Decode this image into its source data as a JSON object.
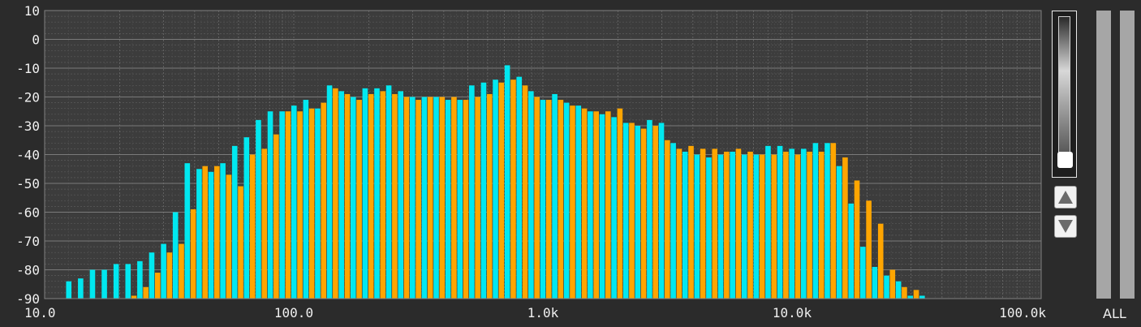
{
  "chart_data": {
    "type": "bar",
    "x_scale": "log",
    "xlim": [
      10,
      100000
    ],
    "ylim": [
      -90,
      10
    ],
    "grid": true,
    "y_ticks": [
      10,
      0,
      -10,
      -20,
      -30,
      -40,
      -50,
      -60,
      -70,
      -80,
      -90
    ],
    "y_tick_labels": [
      "10",
      "0",
      "-10",
      "-20",
      "-30",
      "-40",
      "-50",
      "-60",
      "-70",
      "-80",
      "-90"
    ],
    "x_ticks": [
      10,
      100,
      1000,
      10000,
      100000
    ],
    "x_tick_labels": [
      "10.0",
      "100.0",
      "1.0k",
      "10.0k",
      "100.0k"
    ],
    "band_start_freq": 12.5,
    "band_step_ratio": 1.0563,
    "series": [
      {
        "color": "#00e8f0",
        "values": [
          -84,
          -83,
          -80,
          -80,
          -78,
          -78,
          -77,
          -74,
          -71,
          -60,
          -43,
          -45,
          -46,
          -43,
          -37,
          -34,
          -28,
          -25,
          -25,
          -23,
          -21,
          -24,
          -16,
          -18,
          -20,
          -17,
          -17,
          -16,
          -18,
          -20,
          -20,
          -20,
          -21,
          -21,
          -16,
          -15,
          -14,
          -9,
          -13,
          -18,
          -21,
          -19,
          -22,
          -23,
          -25,
          -26,
          -27,
          -29,
          -30,
          -28,
          -29,
          -36,
          -39,
          -40,
          -41,
          -40,
          -39,
          -40,
          -40,
          -37,
          -37,
          -38,
          -38,
          -36,
          -36,
          -44,
          -57,
          -72,
          -79,
          -82,
          -84,
          -89,
          -89
        ]
      },
      {
        "color": "#ffa500",
        "values": [
          -90,
          -90,
          -90,
          -90,
          -90,
          -89,
          -86,
          -81,
          -74,
          -71,
          -59,
          -44,
          -44,
          -47,
          -51,
          -40,
          -38,
          -33,
          -25,
          -25,
          -24,
          -22,
          -17,
          -19,
          -21,
          -19,
          -18,
          -19,
          -20,
          -21,
          -20,
          -20,
          -20,
          -21,
          -20,
          -19,
          -15,
          -14,
          -16,
          -20,
          -21,
          -21,
          -23,
          -24,
          -25,
          -25,
          -24,
          -29,
          -31,
          -30,
          -35,
          -38,
          -37,
          -38,
          -38,
          -39,
          -38,
          -39,
          -40,
          -40,
          -39,
          -40,
          -39,
          -39,
          -36,
          -41,
          -49,
          -56,
          -64,
          -80,
          -86,
          -87
        ]
      }
    ]
  },
  "controls": {
    "scroll_up_label": "▲",
    "scroll_down_label": "▼"
  },
  "meters": {
    "channel_label": "ALL",
    "left_level": 0,
    "right_level": 0
  }
}
